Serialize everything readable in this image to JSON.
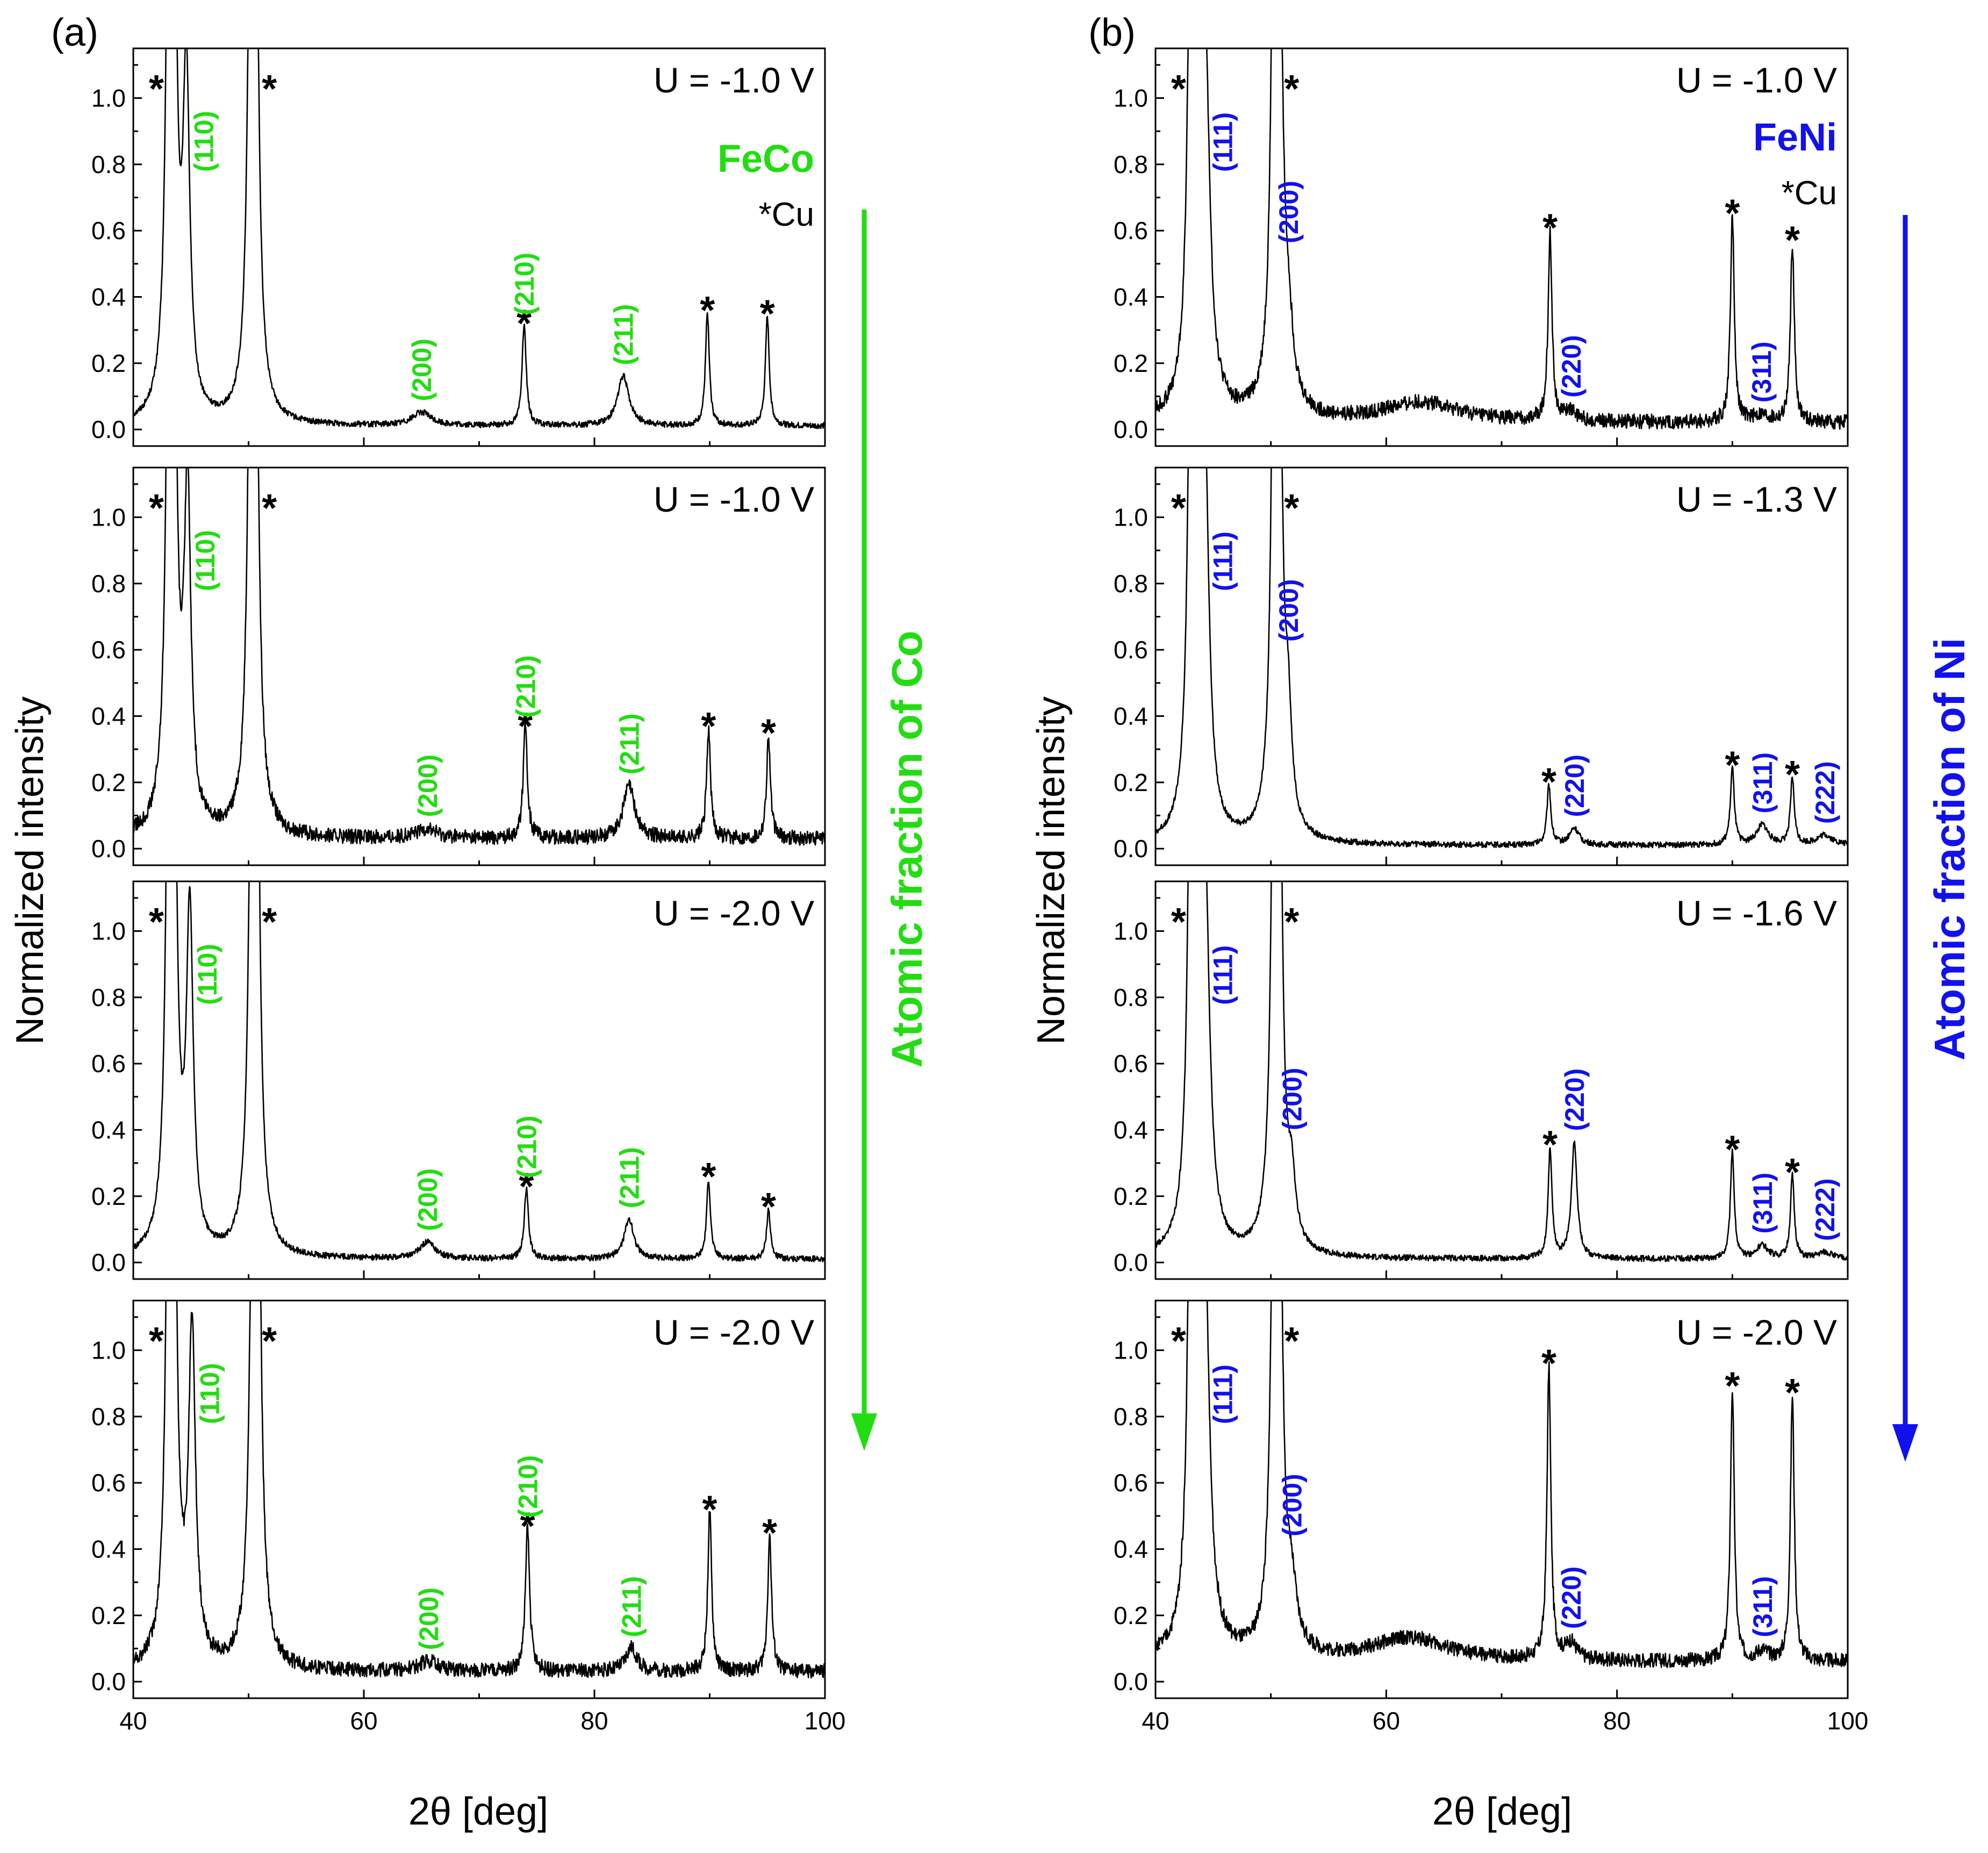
{
  "figure": {
    "colors": {
      "feco": "#22dd11",
      "feni": "#1111ee",
      "axis": "#000000"
    }
  },
  "chart_data": [
    {
      "type": "line",
      "panel_label": "(a)",
      "material": "FeCo",
      "legend_note": "*Cu",
      "trend_label": "Atomic fraction of Co",
      "ylabel": "Normalized intensity",
      "xlabel": "2θ [deg]",
      "xlim": [
        40,
        100
      ],
      "ylim": [
        -0.05,
        1.15
      ],
      "xticks": [
        40,
        60,
        80,
        100
      ],
      "xtick_labels": [
        "40",
        "60",
        "80",
        "100"
      ],
      "yticks": [
        0.0,
        0.2,
        0.4,
        0.6,
        0.8,
        1.0
      ],
      "ytick_labels": [
        "0.0",
        "0.2",
        "0.4",
        "0.6",
        "0.8",
        "1.0"
      ],
      "grid": false,
      "subplots": [
        {
          "voltage": "U = -1.0 V",
          "baseline": 0.01,
          "peaks": [
            {
              "x": 43.3,
              "y": 5.0,
              "w": 0.25
            },
            {
              "x": 44.6,
              "y": 1.0,
              "w": 0.35
            },
            {
              "x": 50.4,
              "y": 5.0,
              "w": 0.25
            },
            {
              "x": 65.0,
              "y": 0.04,
              "w": 1.0
            },
            {
              "x": 73.9,
              "y": 0.3,
              "w": 0.22
            },
            {
              "x": 82.5,
              "y": 0.15,
              "w": 0.6
            },
            {
              "x": 89.8,
              "y": 0.34,
              "w": 0.2
            },
            {
              "x": 95.0,
              "y": 0.33,
              "w": 0.2
            }
          ],
          "hkl_labels": [
            {
              "x": 44.6,
              "text": "(110)"
            },
            {
              "x": 65.0,
              "text": "(200)"
            },
            {
              "x": 73.9,
              "text": "(210)"
            },
            {
              "x": 82.5,
              "text": "(211)"
            }
          ],
          "cu_stars": [
            42.0,
            51.8,
            73.9,
            89.8,
            95.0
          ]
        },
        {
          "voltage": "U = -1.0 V",
          "baseline": 0.03,
          "peaks": [
            {
              "x": 43.3,
              "y": 5.0,
              "w": 0.25
            },
            {
              "x": 44.7,
              "y": 1.0,
              "w": 0.35
            },
            {
              "x": 50.4,
              "y": 5.0,
              "w": 0.25
            },
            {
              "x": 65.5,
              "y": 0.03,
              "w": 1.0
            },
            {
              "x": 74.0,
              "y": 0.33,
              "w": 0.22
            },
            {
              "x": 83.0,
              "y": 0.16,
              "w": 0.6
            },
            {
              "x": 89.9,
              "y": 0.33,
              "w": 0.2
            },
            {
              "x": 95.1,
              "y": 0.31,
              "w": 0.2
            }
          ],
          "hkl_labels": [
            {
              "x": 44.7,
              "text": "(110)"
            },
            {
              "x": 65.5,
              "text": "(200)"
            },
            {
              "x": 74.0,
              "text": "(210)"
            },
            {
              "x": 83.0,
              "text": "(211)"
            }
          ],
          "cu_stars": [
            42.0,
            51.8,
            74.0,
            89.9,
            95.1
          ]
        },
        {
          "voltage": "U = -2.0 V",
          "baseline": 0.01,
          "peaks": [
            {
              "x": 43.3,
              "y": 5.0,
              "w": 0.25
            },
            {
              "x": 44.9,
              "y": 1.0,
              "w": 0.35
            },
            {
              "x": 50.5,
              "y": 5.0,
              "w": 0.25
            },
            {
              "x": 65.5,
              "y": 0.05,
              "w": 0.8
            },
            {
              "x": 74.1,
              "y": 0.21,
              "w": 0.22
            },
            {
              "x": 83.0,
              "y": 0.12,
              "w": 0.5
            },
            {
              "x": 89.9,
              "y": 0.24,
              "w": 0.2
            },
            {
              "x": 95.1,
              "y": 0.15,
              "w": 0.2
            }
          ],
          "hkl_labels": [
            {
              "x": 44.9,
              "text": "(110)"
            },
            {
              "x": 65.5,
              "text": "(200)"
            },
            {
              "x": 74.1,
              "text": "(210)"
            },
            {
              "x": 83.0,
              "text": "(211)"
            }
          ],
          "cu_stars": [
            42.0,
            51.8,
            74.1,
            89.9,
            95.1
          ]
        },
        {
          "voltage": "U = -2.0 V",
          "baseline": 0.03,
          "peaks": [
            {
              "x": 43.3,
              "y": 5.0,
              "w": 0.25
            },
            {
              "x": 45.1,
              "y": 1.0,
              "w": 0.35
            },
            {
              "x": 50.6,
              "y": 5.0,
              "w": 0.25
            },
            {
              "x": 65.6,
              "y": 0.03,
              "w": 1.0
            },
            {
              "x": 74.2,
              "y": 0.43,
              "w": 0.22
            },
            {
              "x": 83.2,
              "y": 0.07,
              "w": 0.6
            },
            {
              "x": 90.0,
              "y": 0.48,
              "w": 0.2
            },
            {
              "x": 95.2,
              "y": 0.41,
              "w": 0.2
            }
          ],
          "hkl_labels": [
            {
              "x": 45.1,
              "text": "(110)"
            },
            {
              "x": 65.6,
              "text": "(200)"
            },
            {
              "x": 74.2,
              "text": "(210)"
            },
            {
              "x": 83.2,
              "text": "(211)"
            }
          ],
          "cu_stars": [
            42.0,
            51.8,
            74.2,
            90.0,
            95.2
          ]
        }
      ]
    },
    {
      "type": "line",
      "panel_label": "(b)",
      "material": "FeNi",
      "legend_note": "*Cu",
      "trend_label": "Atomic fraction of Ni",
      "ylabel": "Normalized intensity",
      "xlabel": "2θ [deg]",
      "xlim": [
        40,
        100
      ],
      "ylim": [
        -0.05,
        1.15
      ],
      "xticks": [
        40,
        60,
        80,
        100
      ],
      "xtick_labels": [
        "40",
        "60",
        "80",
        "100"
      ],
      "yticks": [
        0.0,
        0.2,
        0.4,
        0.6,
        0.8,
        1.0
      ],
      "ytick_labels": [
        "0.0",
        "0.2",
        "0.4",
        "0.6",
        "0.8",
        "1.0"
      ],
      "grid": false,
      "subplots": [
        {
          "voltage": "U = -1.0 V",
          "baseline": 0.02,
          "peaks": [
            {
              "x": 43.3,
              "y": 5.0,
              "w": 0.25
            },
            {
              "x": 44.3,
              "y": 1.0,
              "w": 0.45
            },
            {
              "x": 50.5,
              "y": 5.0,
              "w": 0.25
            },
            {
              "x": 51.5,
              "y": 0.2,
              "w": 0.5
            },
            {
              "x": 63.0,
              "y": 0.06,
              "w": 4.0
            },
            {
              "x": 74.2,
              "y": 0.57,
              "w": 0.2
            },
            {
              "x": 76.0,
              "y": 0.03,
              "w": 0.6
            },
            {
              "x": 90.0,
              "y": 0.62,
              "w": 0.2
            },
            {
              "x": 92.5,
              "y": 0.02,
              "w": 0.8
            },
            {
              "x": 95.2,
              "y": 0.54,
              "w": 0.2
            }
          ],
          "hkl_labels": [
            {
              "x": 44.3,
              "text": "(111)"
            },
            {
              "x": 51.5,
              "text": "(200)"
            },
            {
              "x": 76.0,
              "text": "(220)"
            },
            {
              "x": 92.5,
              "text": "(311)"
            }
          ],
          "cu_stars": [
            42.0,
            51.8,
            74.2,
            90.0,
            95.2
          ]
        },
        {
          "voltage": "U = -1.3 V",
          "baseline": 0.01,
          "peaks": [
            {
              "x": 43.3,
              "y": 5.0,
              "w": 0.25
            },
            {
              "x": 44.3,
              "y": 1.0,
              "w": 0.4
            },
            {
              "x": 50.5,
              "y": 5.0,
              "w": 0.25
            },
            {
              "x": 51.5,
              "y": 0.28,
              "w": 0.35
            },
            {
              "x": 74.1,
              "y": 0.18,
              "w": 0.2
            },
            {
              "x": 76.3,
              "y": 0.05,
              "w": 0.5
            },
            {
              "x": 90.0,
              "y": 0.23,
              "w": 0.2
            },
            {
              "x": 92.6,
              "y": 0.06,
              "w": 0.6
            },
            {
              "x": 95.2,
              "y": 0.2,
              "w": 0.2
            },
            {
              "x": 98.0,
              "y": 0.03,
              "w": 0.8
            }
          ],
          "hkl_labels": [
            {
              "x": 44.3,
              "text": "(111)"
            },
            {
              "x": 51.5,
              "text": "(200)"
            },
            {
              "x": 76.3,
              "text": "(220)"
            },
            {
              "x": 92.6,
              "text": "(311)"
            },
            {
              "x": 98.0,
              "text": "(222)"
            }
          ],
          "cu_stars": [
            42.0,
            51.8,
            74.1,
            90.0,
            95.2
          ]
        },
        {
          "voltage": "U = -1.6 V",
          "baseline": 0.01,
          "peaks": [
            {
              "x": 43.3,
              "y": 5.0,
              "w": 0.25
            },
            {
              "x": 44.3,
              "y": 1.0,
              "w": 0.45
            },
            {
              "x": 50.5,
              "y": 5.0,
              "w": 0.25
            },
            {
              "x": 51.8,
              "y": 0.17,
              "w": 0.4
            },
            {
              "x": 74.2,
              "y": 0.33,
              "w": 0.2
            },
            {
              "x": 76.3,
              "y": 0.35,
              "w": 0.3
            },
            {
              "x": 90.0,
              "y": 0.32,
              "w": 0.2
            },
            {
              "x": 92.6,
              "y": 0.04,
              "w": 0.6
            },
            {
              "x": 95.2,
              "y": 0.25,
              "w": 0.2
            },
            {
              "x": 98.0,
              "y": 0.02,
              "w": 0.8
            }
          ],
          "hkl_labels": [
            {
              "x": 44.3,
              "text": "(111)"
            },
            {
              "x": 51.8,
              "text": "(200)"
            },
            {
              "x": 76.3,
              "text": "(220)"
            },
            {
              "x": 92.6,
              "text": "(311)"
            },
            {
              "x": 98.0,
              "text": "(222)"
            }
          ],
          "cu_stars": [
            42.0,
            51.8,
            74.2,
            90.0,
            95.2
          ]
        },
        {
          "voltage": "U = -2.0 V",
          "baseline": 0.06,
          "peaks": [
            {
              "x": 43.3,
              "y": 5.0,
              "w": 0.25
            },
            {
              "x": 44.3,
              "y": 1.0,
              "w": 0.45
            },
            {
              "x": 50.5,
              "y": 5.0,
              "w": 0.25
            },
            {
              "x": 51.8,
              "y": 0.15,
              "w": 0.5
            },
            {
              "x": 62.0,
              "y": 0.07,
              "w": 4.0
            },
            {
              "x": 74.1,
              "y": 0.88,
              "w": 0.2
            },
            {
              "x": 76.0,
              "y": 0.05,
              "w": 0.6
            },
            {
              "x": 90.0,
              "y": 0.82,
              "w": 0.2
            },
            {
              "x": 92.6,
              "y": 0.03,
              "w": 0.6
            },
            {
              "x": 95.2,
              "y": 0.8,
              "w": 0.2
            }
          ],
          "hkl_labels": [
            {
              "x": 44.3,
              "text": "(111)"
            },
            {
              "x": 51.8,
              "text": "(200)"
            },
            {
              "x": 76.0,
              "text": "(220)"
            },
            {
              "x": 92.6,
              "text": "(311)"
            }
          ],
          "cu_stars": [
            42.0,
            51.8,
            74.1,
            90.0,
            95.2
          ]
        }
      ]
    }
  ]
}
